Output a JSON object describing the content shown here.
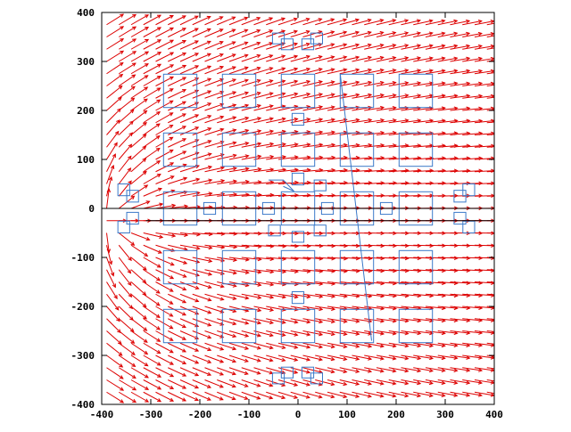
{
  "chart_data": {
    "type": "vector_field",
    "title": "",
    "xlabel": "",
    "ylabel": "",
    "xlim": [
      -400,
      400
    ],
    "ylim": [
      -400,
      400
    ],
    "xticks": [
      "-400",
      "-300",
      "-200",
      "-100",
      "0",
      "100",
      "200",
      "300",
      "400"
    ],
    "yticks": [
      "400",
      "300",
      "200",
      "100",
      "0",
      "-100",
      "-200",
      "-300",
      "-400"
    ],
    "grid": false,
    "legend": "none",
    "axis_lines": {
      "x_zero": true,
      "y_zero_segment": {
        "y": -25,
        "x_from": -310,
        "x_to": 400
      }
    },
    "field": {
      "color": "#dd0000",
      "grid_step": 25,
      "source": {
        "x": -390,
        "y": -25
      },
      "description_keys": [
        "radial from source",
        "horizontal drift"
      ]
    },
    "rectangles": {
      "color": "#3a78c8",
      "big_centers_x": [
        -240,
        -120,
        0,
        120,
        240
      ],
      "big_centers_y": [
        240,
        120,
        0,
        -120,
        -240
      ],
      "big_size": 68,
      "small": [
        {
          "x": -40,
          "y": 347,
          "w": 24,
          "h": 22
        },
        {
          "x": -22,
          "y": 335,
          "w": 24,
          "h": 22
        },
        {
          "x": 20,
          "y": 335,
          "w": 24,
          "h": 22
        },
        {
          "x": 38,
          "y": 347,
          "w": 24,
          "h": 22
        },
        {
          "x": 0,
          "y": 182,
          "w": 24,
          "h": 24
        },
        {
          "x": 0,
          "y": 60,
          "w": 24,
          "h": 24
        },
        {
          "x": 45,
          "y": 47,
          "w": 24,
          "h": 22
        },
        {
          "x": -355,
          "y": 38,
          "w": 24,
          "h": 24
        },
        {
          "x": -337,
          "y": 25,
          "w": 24,
          "h": 24
        },
        {
          "x": -337,
          "y": -20,
          "w": 24,
          "h": 24
        },
        {
          "x": -355,
          "y": -38,
          "w": 24,
          "h": 24
        },
        {
          "x": -180,
          "y": 0,
          "w": 24,
          "h": 24
        },
        {
          "x": -60,
          "y": 0,
          "w": 24,
          "h": 24
        },
        {
          "x": 60,
          "y": 0,
          "w": 24,
          "h": 24
        },
        {
          "x": 180,
          "y": 0,
          "w": 24,
          "h": 24
        },
        {
          "x": -48,
          "y": -45,
          "w": 24,
          "h": 22
        },
        {
          "x": 0,
          "y": -58,
          "w": 24,
          "h": 22
        },
        {
          "x": 45,
          "y": -45,
          "w": 24,
          "h": 22
        },
        {
          "x": 330,
          "y": 25,
          "w": 24,
          "h": 24
        },
        {
          "x": 348,
          "y": 38,
          "w": 24,
          "h": 24
        },
        {
          "x": 330,
          "y": -20,
          "w": 24,
          "h": 24
        },
        {
          "x": 348,
          "y": -38,
          "w": 24,
          "h": 24
        },
        {
          "x": 0,
          "y": -182,
          "w": 24,
          "h": 24
        },
        {
          "x": -40,
          "y": -347,
          "w": 24,
          "h": 22
        },
        {
          "x": -22,
          "y": -335,
          "w": 24,
          "h": 22
        },
        {
          "x": 20,
          "y": -335,
          "w": 24,
          "h": 22
        },
        {
          "x": 38,
          "y": -347,
          "w": 24,
          "h": 22
        }
      ],
      "polylines": [
        [
          [
            -60,
            58
          ],
          [
            -30,
            58
          ],
          [
            -8,
            35
          ],
          [
            -30,
            45
          ]
        ],
        [
          [
            86,
            275
          ],
          [
            150,
            -270
          ]
        ]
      ]
    }
  }
}
